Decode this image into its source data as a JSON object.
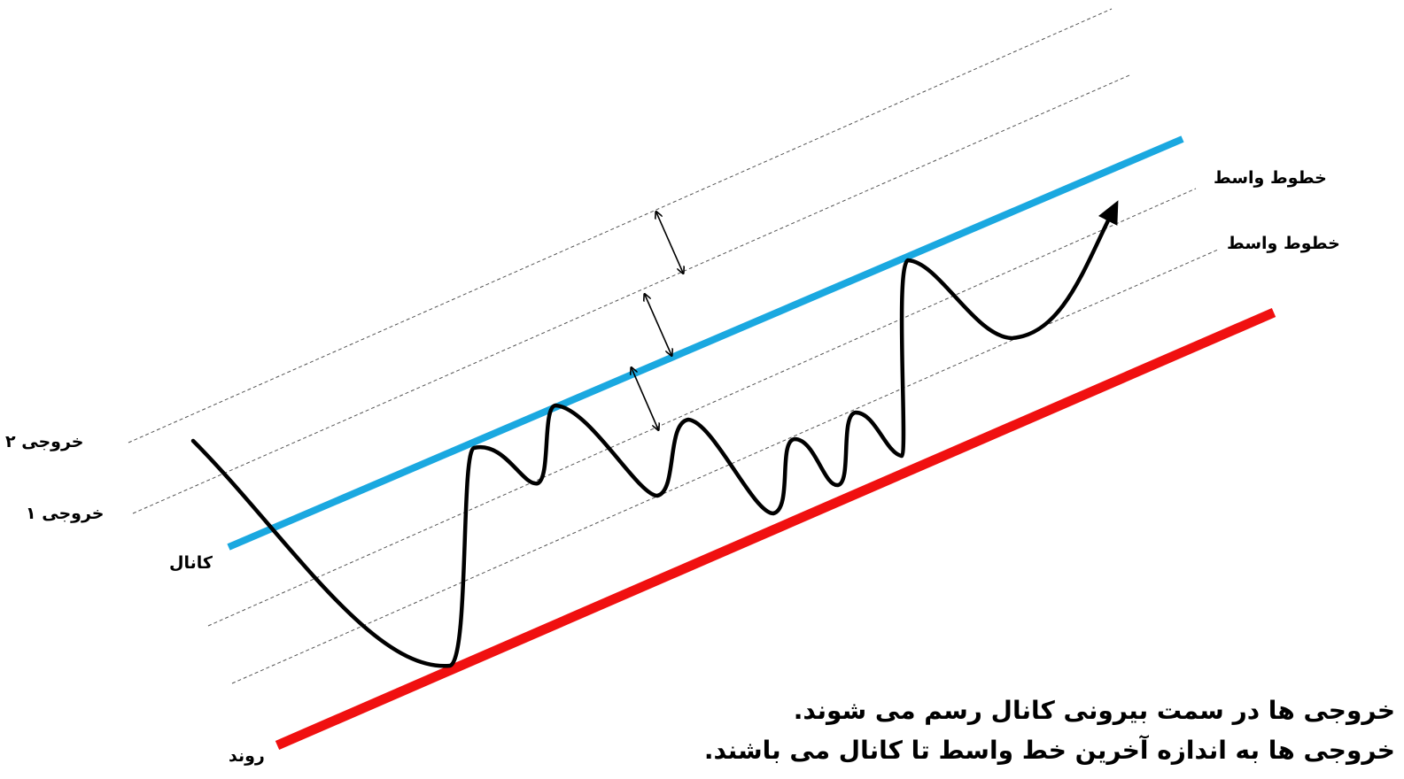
{
  "labels": {
    "exit_2": "خروجی ۲",
    "exit_1": "خروجی ۱",
    "channel": "کانال",
    "trend": "روند",
    "middle_lines_upper": "خطوط واسط",
    "middle_lines_lower": "خطوط واسط"
  },
  "notes": [
    "خروجی ها در سمت بیرونی کانال رسم می شوند.",
    "خروجی ها به اندازه آخرین خط واسط تا کانال می باشند."
  ],
  "colors": {
    "channel_line": "#1aa8e0",
    "trend_line": "#f01010",
    "price_path": "#000000",
    "dashed_lines": "#555555"
  }
}
